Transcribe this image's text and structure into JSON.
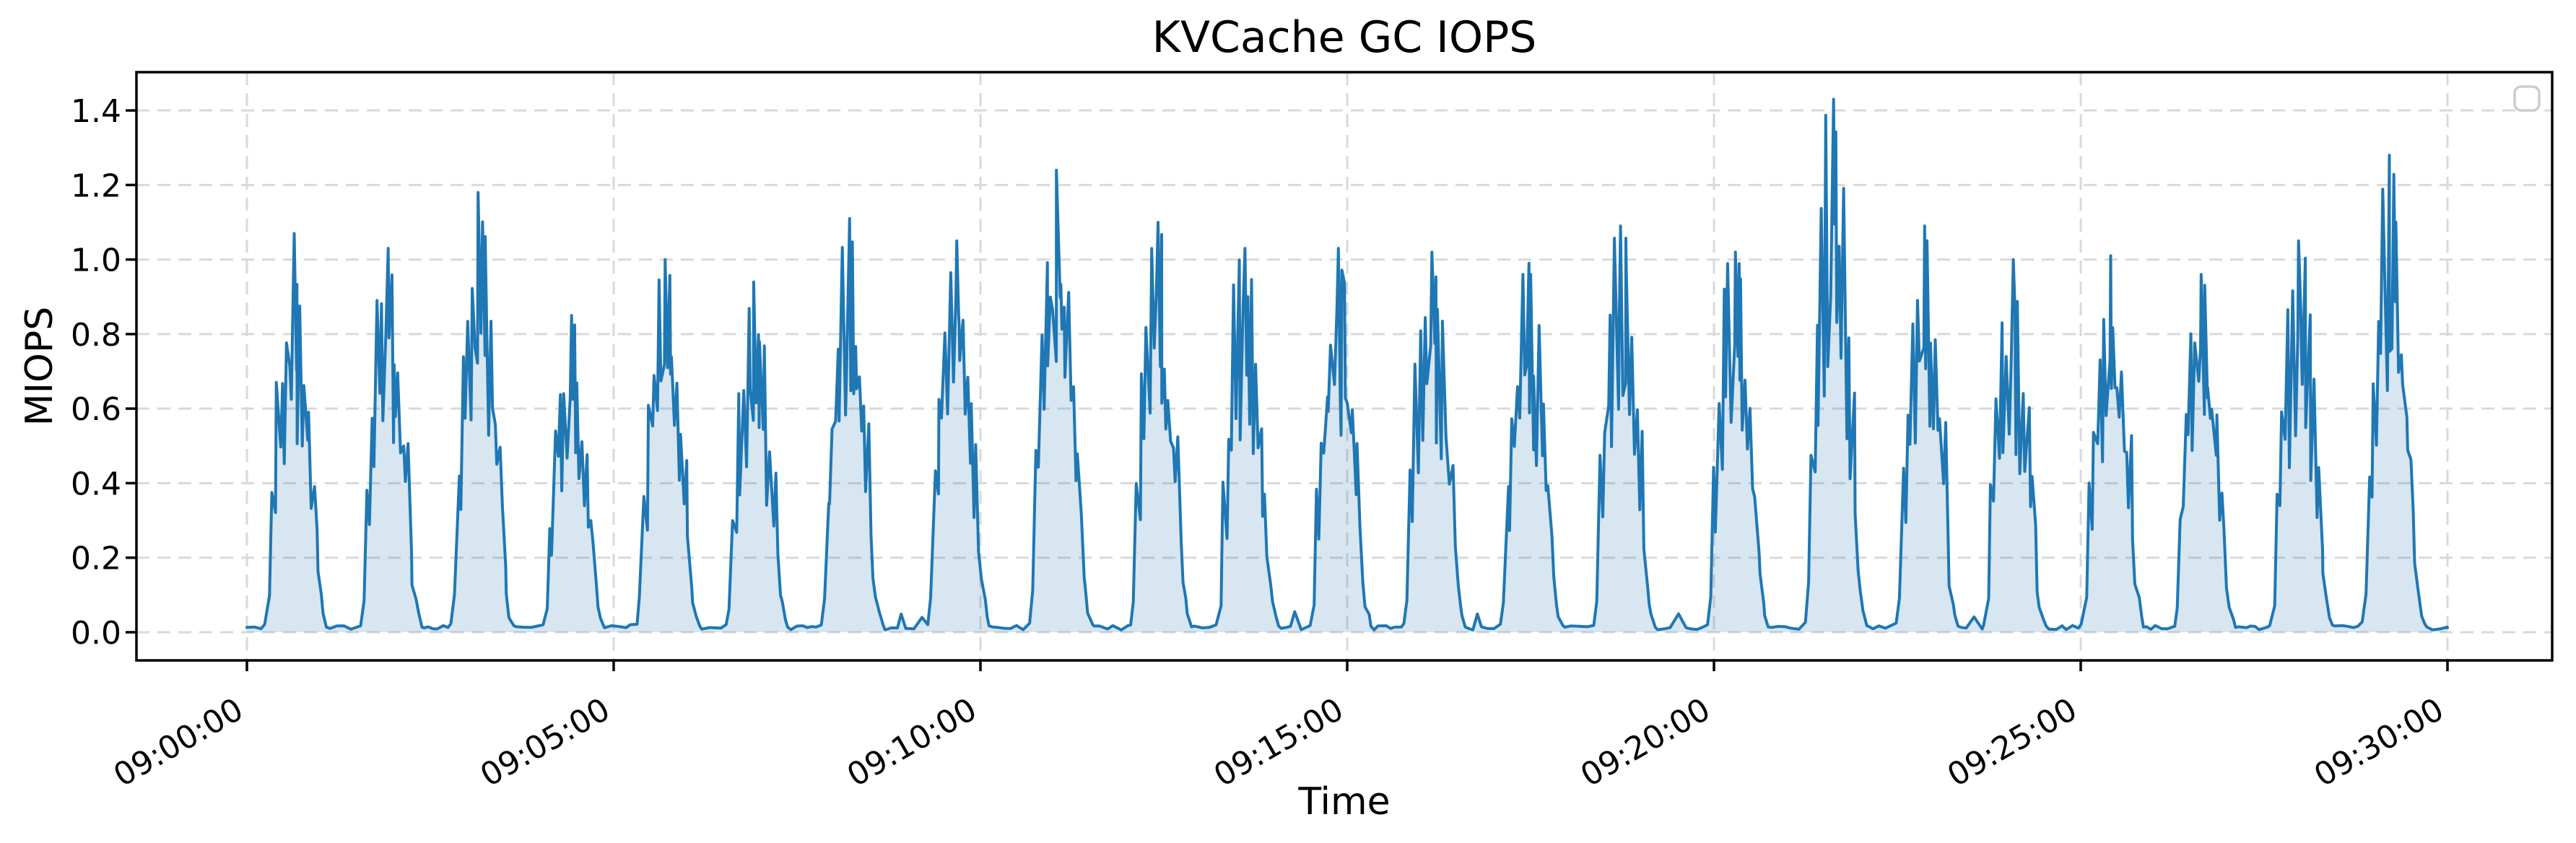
{
  "chart_data": {
    "type": "area",
    "title": "KVCache GC IOPS",
    "xlabel": "Time",
    "ylabel": "MIOPS",
    "x_ticks": [
      "09:00:00",
      "09:05:00",
      "09:10:00",
      "09:15:00",
      "09:20:00",
      "09:25:00",
      "09:30:00"
    ],
    "y_ticks": [
      "0.0",
      "0.2",
      "0.4",
      "0.6",
      "0.8",
      "1.0",
      "1.2",
      "1.4"
    ],
    "ylim": [
      -0.07,
      1.51
    ],
    "x_data_range": [
      "09:00:00",
      "09:30:00"
    ],
    "grid": true,
    "grid_style": "dashed",
    "legend": {
      "visible": true,
      "entries": [],
      "position": "upper-right"
    },
    "style": {
      "line_color": "#1f77b4",
      "fill_color": "rgba(31,119,180,0.18)",
      "grid_color": "#d9d9d9",
      "spine_color": "#000000",
      "legend_border_color": "#cccccc",
      "background": "#ffffff",
      "x_tick_rotation_deg": 30
    },
    "baseline_miops": 0.01,
    "burst_duration_s": 50,
    "bursts": [
      {
        "time": "09:00:41",
        "peak_miops": 1.07
      },
      {
        "time": "09:01:58",
        "peak_miops": 1.03
      },
      {
        "time": "09:03:13",
        "peak_miops": 1.18
      },
      {
        "time": "09:04:28",
        "peak_miops": 0.85
      },
      {
        "time": "09:05:45",
        "peak_miops": 1.0
      },
      {
        "time": "09:06:58",
        "peak_miops": 0.94
      },
      {
        "time": "09:08:15",
        "peak_miops": 1.11
      },
      {
        "time": "09:09:43",
        "peak_miops": 1.05
      },
      {
        "time": "09:11:06",
        "peak_miops": 1.24
      },
      {
        "time": "09:12:28",
        "peak_miops": 1.1
      },
      {
        "time": "09:13:39",
        "peak_miops": 1.03
      },
      {
        "time": "09:14:55",
        "peak_miops": 1.03
      },
      {
        "time": "09:16:12",
        "peak_miops": 1.02
      },
      {
        "time": "09:17:31",
        "peak_miops": 0.99
      },
      {
        "time": "09:18:47",
        "peak_miops": 1.09
      },
      {
        "time": "09:20:20",
        "peak_miops": 1.02
      },
      {
        "time": "09:21:40",
        "peak_miops": 1.43
      },
      {
        "time": "09:22:55",
        "peak_miops": 1.09
      },
      {
        "time": "09:24:07",
        "peak_miops": 1.0
      },
      {
        "time": "09:25:27",
        "peak_miops": 1.01
      },
      {
        "time": "09:26:42",
        "peak_miops": 0.96
      },
      {
        "time": "09:28:01",
        "peak_miops": 1.05
      },
      {
        "time": "09:29:16",
        "peak_miops": 1.28
      }
    ]
  }
}
